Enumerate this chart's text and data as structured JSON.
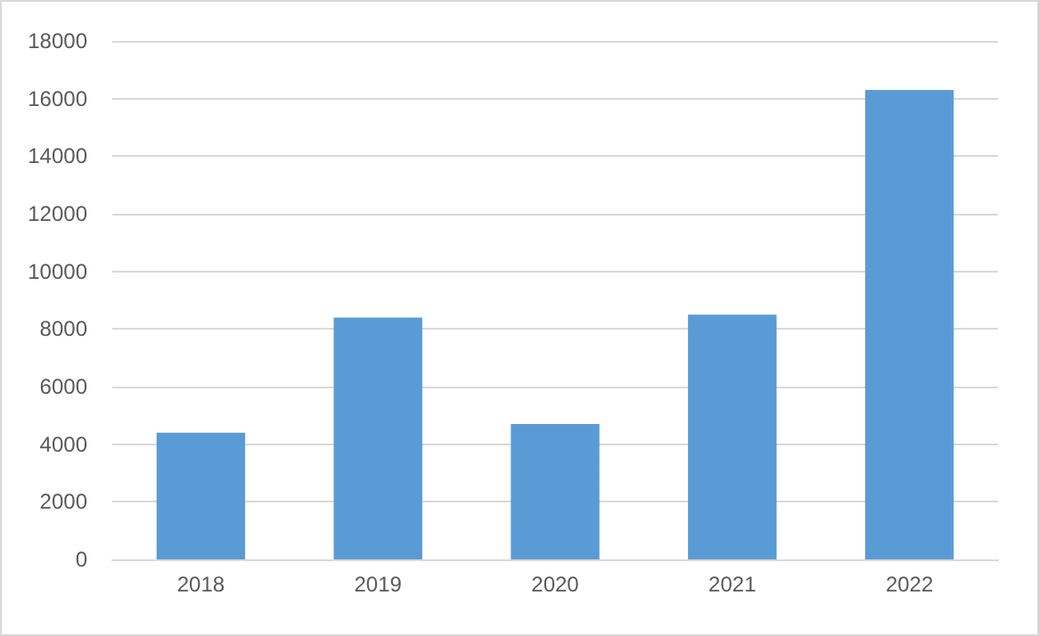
{
  "chart_data": {
    "type": "bar",
    "categories": [
      "2018",
      "2019",
      "2020",
      "2021",
      "2022"
    ],
    "values": [
      4400,
      8400,
      4700,
      8500,
      16300
    ],
    "color": "#5b9bd5",
    "ylim": [
      0,
      18000
    ],
    "yticks": [
      0,
      2000,
      4000,
      6000,
      8000,
      10000,
      12000,
      14000,
      16000,
      18000
    ],
    "grid": "y"
  }
}
